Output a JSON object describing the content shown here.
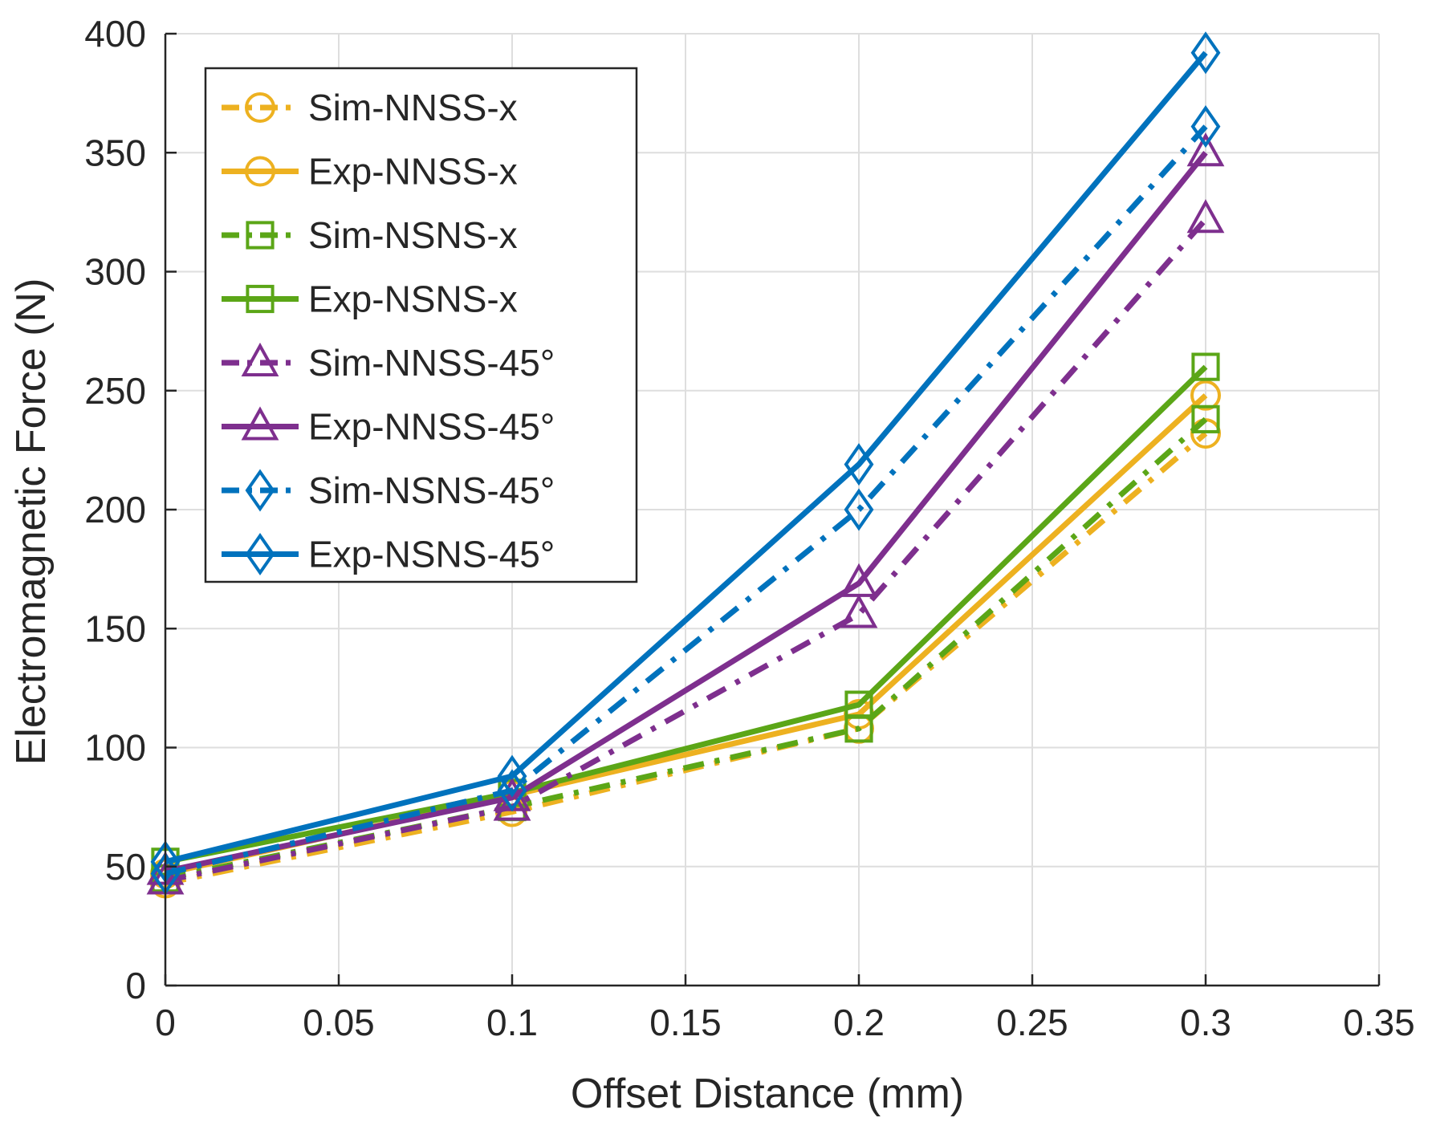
{
  "chart_data": {
    "type": "line",
    "title": "",
    "xlabel": "Offset Distance (mm)",
    "ylabel": "Electromagnetic Force (N)",
    "xlim": [
      0,
      0.35
    ],
    "ylim": [
      0,
      400
    ],
    "xticks": [
      0,
      0.05,
      0.1,
      0.15,
      0.2,
      0.25,
      0.3,
      0.35
    ],
    "yticks": [
      0,
      50,
      100,
      150,
      200,
      250,
      300,
      350,
      400
    ],
    "xtick_labels": [
      "0",
      "0.05",
      "0.1",
      "0.15",
      "0.2",
      "0.25",
      "0.3",
      "0.35"
    ],
    "ytick_labels": [
      "0",
      "50",
      "100",
      "150",
      "200",
      "250",
      "300",
      "350",
      "400"
    ],
    "grid": true,
    "legend_position": "top-left",
    "x": [
      0,
      0.1,
      0.2,
      0.3
    ],
    "series": [
      {
        "name": "Sim-NNSS-x",
        "values": [
          43,
          73,
          108,
          232
        ],
        "color": "#EDB120",
        "line": "dashdot",
        "marker": "circle"
      },
      {
        "name": "Exp-NNSS-x",
        "values": [
          47,
          80,
          114,
          248
        ],
        "color": "#EDB120",
        "line": "solid",
        "marker": "circle"
      },
      {
        "name": "Sim-NSNS-x",
        "values": [
          45,
          75,
          108,
          238
        ],
        "color": "#5BA617",
        "line": "dashdot",
        "marker": "square"
      },
      {
        "name": "Exp-NSNS-x",
        "values": [
          52,
          81,
          118,
          260
        ],
        "color": "#5BA617",
        "line": "solid",
        "marker": "square"
      },
      {
        "name": "Sim-NNSS-45°",
        "values": [
          44,
          75,
          156,
          322
        ],
        "color": "#7E2F8E",
        "line": "dashdot",
        "marker": "triangle"
      },
      {
        "name": "Exp-NNSS-45°",
        "values": [
          48,
          79,
          169,
          350
        ],
        "color": "#7E2F8E",
        "line": "solid",
        "marker": "triangle"
      },
      {
        "name": "Sim-NSNS-45°",
        "values": [
          47,
          82,
          200,
          361
        ],
        "color": "#0072BD",
        "line": "dashdot",
        "marker": "diamond"
      },
      {
        "name": "Exp-NSNS-45°",
        "values": [
          52,
          88,
          219,
          392
        ],
        "color": "#0072BD",
        "line": "solid",
        "marker": "diamond"
      }
    ]
  }
}
